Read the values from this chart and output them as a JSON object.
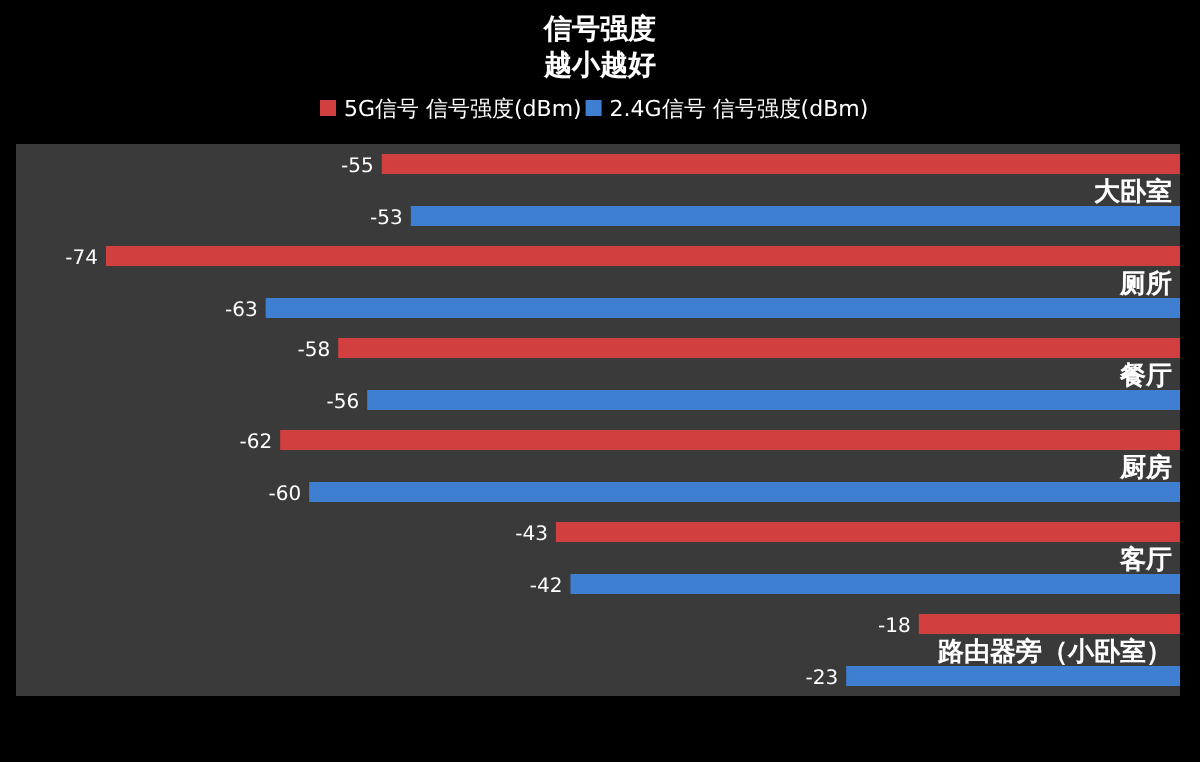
{
  "chart_data": {
    "type": "bar",
    "orientation": "horizontal",
    "title": "信号强度",
    "subtitle": "越小越好",
    "categories": [
      "大卧室",
      "厕所",
      "餐厅",
      "厨房",
      "客厅",
      "路由器旁（小卧室）"
    ],
    "series": [
      {
        "name": "5G信号 信号强度(dBm)",
        "color": "#d23f3f",
        "values": [
          -55,
          -74,
          -58,
          -62,
          -43,
          -18
        ]
      },
      {
        "name": "2.4G信号 信号强度(dBm)",
        "color": "#3f7fd2",
        "values": [
          -53,
          -63,
          -56,
          -60,
          -42,
          -23
        ]
      }
    ],
    "data_labels": true,
    "legend": "top"
  }
}
